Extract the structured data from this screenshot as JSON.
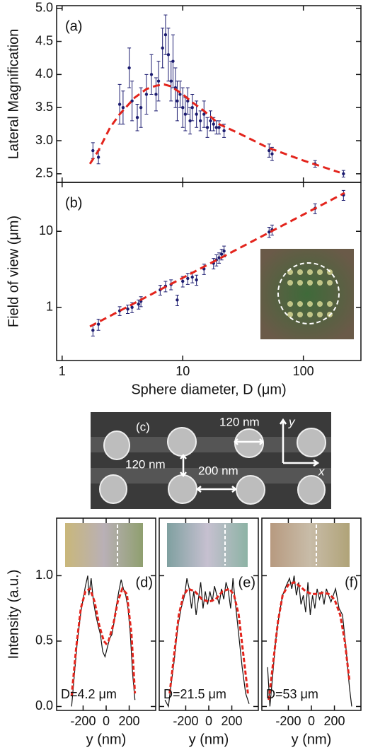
{
  "chart_data": [
    {
      "type": "scatter",
      "panel": "(a)",
      "ylabel": "Lateral Magnification",
      "xlog": true,
      "xlim": [
        0.9,
        300
      ],
      "xticks": [
        1,
        10,
        100
      ],
      "ylim": [
        2.37,
        5.04
      ],
      "yticks": [
        2.5,
        {
          "value": 3,
          "label": "3.0"
        },
        3.5,
        {
          "value": 4,
          "label": "4.0"
        },
        4.5,
        {
          "value": 5,
          "label": "5.0"
        }
      ],
      "color": "#1c1c70",
      "x": [
        1.8,
        2.0,
        3.0,
        3.2,
        3.6,
        3.8,
        4.2,
        4.5,
        5.0,
        5.5,
        6.0,
        6.3,
        6.8,
        7.2,
        7.6,
        8.0,
        8.3,
        8.7,
        9.0,
        9.5,
        10,
        10.5,
        11,
        11.5,
        12,
        13,
        14,
        15,
        16,
        17,
        18,
        19,
        20,
        22,
        52,
        55,
        125,
        215
      ],
      "values": [
        2.85,
        2.75,
        3.55,
        3.5,
        4.1,
        3.6,
        3.35,
        3.5,
        3.7,
        4.0,
        3.7,
        3.9,
        4.4,
        4.6,
        4.3,
        3.9,
        4.2,
        3.8,
        3.6,
        3.7,
        3.5,
        3.4,
        3.6,
        3.3,
        3.5,
        3.4,
        3.3,
        3.4,
        3.2,
        3.3,
        3.25,
        3.2,
        3.2,
        3.15,
        2.85,
        2.8,
        2.65,
        2.5
      ],
      "errors": [
        0.12,
        0.1,
        0.3,
        0.25,
        0.3,
        0.3,
        0.2,
        0.3,
        0.3,
        0.3,
        0.25,
        0.3,
        0.3,
        0.3,
        0.4,
        0.3,
        0.4,
        0.3,
        0.3,
        0.2,
        0.3,
        0.25,
        0.2,
        0.2,
        0.2,
        0.2,
        0.15,
        0.2,
        0.15,
        0.15,
        0.1,
        0.1,
        0.1,
        0.1,
        0.1,
        0.1,
        0.05,
        0.05
      ],
      "fit": {
        "color": "#e3241c",
        "x": [
          1.7,
          2,
          2.5,
          3,
          4,
          5,
          6,
          7,
          8,
          10,
          12,
          15,
          20,
          30,
          50,
          100,
          200
        ],
        "values": [
          2.65,
          2.85,
          3.2,
          3.4,
          3.65,
          3.78,
          3.83,
          3.85,
          3.82,
          3.7,
          3.58,
          3.45,
          3.25,
          3.1,
          2.9,
          2.7,
          2.52
        ]
      }
    },
    {
      "type": "scatter",
      "panel": "(b)",
      "ylabel": "Field of view (μm)",
      "xlabel": "Sphere diameter, D (μm)",
      "xlog": true,
      "ylog": true,
      "xlim": [
        0.9,
        300
      ],
      "xticks": [
        1,
        10,
        100
      ],
      "ylim": [
        0.2,
        44
      ],
      "yticks": [
        1,
        10
      ],
      "color": "#1c1c70",
      "x": [
        1.8,
        2.0,
        3.0,
        3.5,
        3.8,
        4.3,
        4.5,
        6.5,
        7.2,
        8,
        9,
        10,
        11,
        12,
        13,
        15,
        18,
        19,
        20,
        21,
        22,
        52,
        55,
        125,
        215
      ],
      "values": [
        0.5,
        0.6,
        0.9,
        0.95,
        1.0,
        1.1,
        1.2,
        1.7,
        1.9,
        2.0,
        1.25,
        2.2,
        2.4,
        2.5,
        2.3,
        3.2,
        3.8,
        4.2,
        4.5,
        5.0,
        5.5,
        9.8,
        10.5,
        20,
        30
      ],
      "errors": [
        0.08,
        0.1,
        0.12,
        0.12,
        0.15,
        0.15,
        0.18,
        0.25,
        0.3,
        0.3,
        0.2,
        0.35,
        0.4,
        0.4,
        0.35,
        0.5,
        0.6,
        0.7,
        0.7,
        0.8,
        0.9,
        1.5,
        1.6,
        3,
        4.5
      ],
      "fit": {
        "color": "#e3241c",
        "x": [
          1.7,
          220
        ],
        "values": [
          0.56,
          32
        ]
      }
    },
    {
      "type": "line",
      "panel": "(d)",
      "ylabel": "Intensity (a.u.)",
      "xlabel": "y (nm)",
      "note": "D=4.2 μm",
      "xlim": [
        -430,
        430
      ],
      "xticks": [
        -200,
        0,
        200
      ],
      "ylim": [
        -0.03,
        1.44
      ],
      "yticks": [
        {
          "value": 0,
          "label": "0.0"
        },
        0.5,
        {
          "value": 1,
          "label": "1.0"
        }
      ],
      "ytick_labels": true,
      "series": [
        {
          "color": "#111111",
          "dash": false,
          "x": [
            -300,
            -280,
            -250,
            -220,
            -200,
            -180,
            -160,
            -150,
            -130,
            -110,
            -90,
            -70,
            -50,
            -30,
            -10,
            10,
            30,
            50,
            70,
            90,
            110,
            130,
            150,
            170,
            190,
            210,
            230,
            250
          ],
          "values": [
            0.0,
            0.2,
            0.5,
            0.72,
            0.82,
            0.92,
            1.0,
            0.85,
            0.98,
            0.8,
            0.7,
            0.62,
            0.55,
            0.42,
            0.38,
            0.45,
            0.52,
            0.55,
            0.65,
            0.78,
            0.88,
            0.97,
            0.9,
            0.85,
            0.75,
            0.55,
            0.25,
            0.05
          ]
        },
        {
          "color": "#e3241c",
          "dash": true,
          "x": [
            -300,
            -260,
            -220,
            -180,
            -140,
            -100,
            -60,
            -20,
            0,
            20,
            60,
            100,
            140,
            180,
            220,
            250
          ],
          "values": [
            0.08,
            0.45,
            0.75,
            0.88,
            0.9,
            0.8,
            0.62,
            0.5,
            0.48,
            0.5,
            0.62,
            0.8,
            0.9,
            0.86,
            0.55,
            0.1
          ]
        }
      ]
    },
    {
      "type": "line",
      "panel": "(e)",
      "xlabel": "y (nm)",
      "note": "D=21.5 μm",
      "xlim": [
        -430,
        430
      ],
      "xticks": [
        -200,
        0,
        200
      ],
      "ylim": [
        -0.03,
        1.44
      ],
      "yticks": [
        0,
        0.5,
        1
      ],
      "ytick_labels": false,
      "series": [
        {
          "color": "#111111",
          "dash": false,
          "x": [
            -380,
            -350,
            -330,
            -300,
            -270,
            -240,
            -210,
            -190,
            -170,
            -150,
            -130,
            -110,
            -90,
            -70,
            -50,
            -30,
            -10,
            10,
            30,
            50,
            70,
            90,
            110,
            130,
            150,
            170,
            190,
            210,
            230,
            260,
            290,
            320,
            350
          ],
          "values": [
            0.05,
            0.0,
            0.15,
            0.35,
            0.6,
            0.75,
            0.85,
            0.98,
            0.9,
            0.75,
            0.88,
            0.7,
            0.82,
            0.95,
            0.75,
            0.88,
            0.78,
            0.88,
            0.8,
            0.92,
            0.85,
            0.78,
            0.9,
            0.82,
            0.95,
            0.88,
            0.75,
            0.98,
            0.8,
            0.55,
            0.3,
            0.1,
            0.02
          ]
        },
        {
          "color": "#e3241c",
          "dash": true,
          "x": [
            -340,
            -300,
            -260,
            -220,
            -180,
            -120,
            -60,
            0,
            60,
            120,
            180,
            220,
            260,
            300,
            340
          ],
          "values": [
            0.1,
            0.4,
            0.7,
            0.85,
            0.9,
            0.88,
            0.82,
            0.8,
            0.82,
            0.88,
            0.9,
            0.85,
            0.7,
            0.4,
            0.1
          ]
        }
      ]
    },
    {
      "type": "line",
      "panel": "(f)",
      "xlabel": "y (nm)",
      "note": "D=53 μm",
      "xlim": [
        -430,
        430
      ],
      "xticks": [
        -200,
        0,
        200
      ],
      "ylim": [
        -0.03,
        1.44
      ],
      "yticks": [
        0,
        0.5,
        1
      ],
      "ytick_labels": false,
      "series": [
        {
          "color": "#111111",
          "dash": false,
          "x": [
            -380,
            -360,
            -340,
            -310,
            -280,
            -250,
            -220,
            -190,
            -170,
            -150,
            -130,
            -110,
            -90,
            -70,
            -50,
            -30,
            -10,
            10,
            30,
            50,
            70,
            90,
            110,
            130,
            150,
            170,
            190,
            210,
            240,
            270,
            300,
            330,
            350
          ],
          "values": [
            0.3,
            0.0,
            0.2,
            0.5,
            0.7,
            0.85,
            0.92,
            0.98,
            0.9,
            1.0,
            0.85,
            0.95,
            0.78,
            0.85,
            0.72,
            0.95,
            0.7,
            0.85,
            0.75,
            0.9,
            0.82,
            0.88,
            0.78,
            0.9,
            0.85,
            0.8,
            0.85,
            0.9,
            0.75,
            0.7,
            0.45,
            0.15,
            0.0
          ]
        },
        {
          "color": "#e3241c",
          "dash": true,
          "x": [
            -370,
            -330,
            -290,
            -250,
            -200,
            -150,
            -100,
            -50,
            0,
            50,
            100,
            150,
            200,
            250,
            290,
            330
          ],
          "values": [
            0.05,
            0.35,
            0.65,
            0.85,
            0.93,
            0.95,
            0.92,
            0.88,
            0.86,
            0.86,
            0.87,
            0.86,
            0.82,
            0.7,
            0.5,
            0.2
          ]
        }
      ]
    }
  ],
  "image_c": {
    "panel": "(c)",
    "label_top": "120 nm",
    "label_left": "120 nm",
    "label_mid": "200 nm",
    "axis_y": "y",
    "axis_x": "x"
  }
}
